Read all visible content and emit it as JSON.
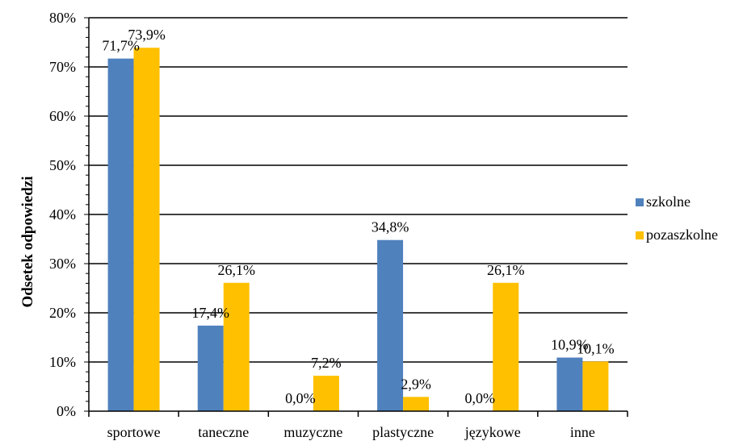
{
  "chart_data": {
    "type": "bar",
    "ylabel": "Odsetek odpowiedzi",
    "xlabel": "",
    "title": "",
    "categories": [
      "sportowe",
      "taneczne",
      "muzyczne",
      "plastyczne",
      "językowe",
      "inne"
    ],
    "series": [
      {
        "name": "szkolne",
        "color": "#4F81BD",
        "values": [
          71.7,
          17.4,
          0.0,
          34.8,
          0.0,
          10.9
        ],
        "labels": [
          "71,7%",
          "17,4%",
          "0,0%",
          "34,8%",
          "0,0%",
          "10,9%"
        ]
      },
      {
        "name": "pozaszkolne",
        "color": "#FFC000",
        "values": [
          73.9,
          26.1,
          7.2,
          2.9,
          26.1,
          10.1
        ],
        "labels": [
          "73,9%",
          "26,1%",
          "7,2%",
          "2,9%",
          "26,1%",
          "10,1%"
        ]
      }
    ],
    "ylim": [
      0,
      80
    ],
    "yticks": [
      "0%",
      "10%",
      "20%",
      "30%",
      "40%",
      "50%",
      "60%",
      "70%",
      "80%"
    ],
    "grid": true,
    "legend_position": "right"
  }
}
